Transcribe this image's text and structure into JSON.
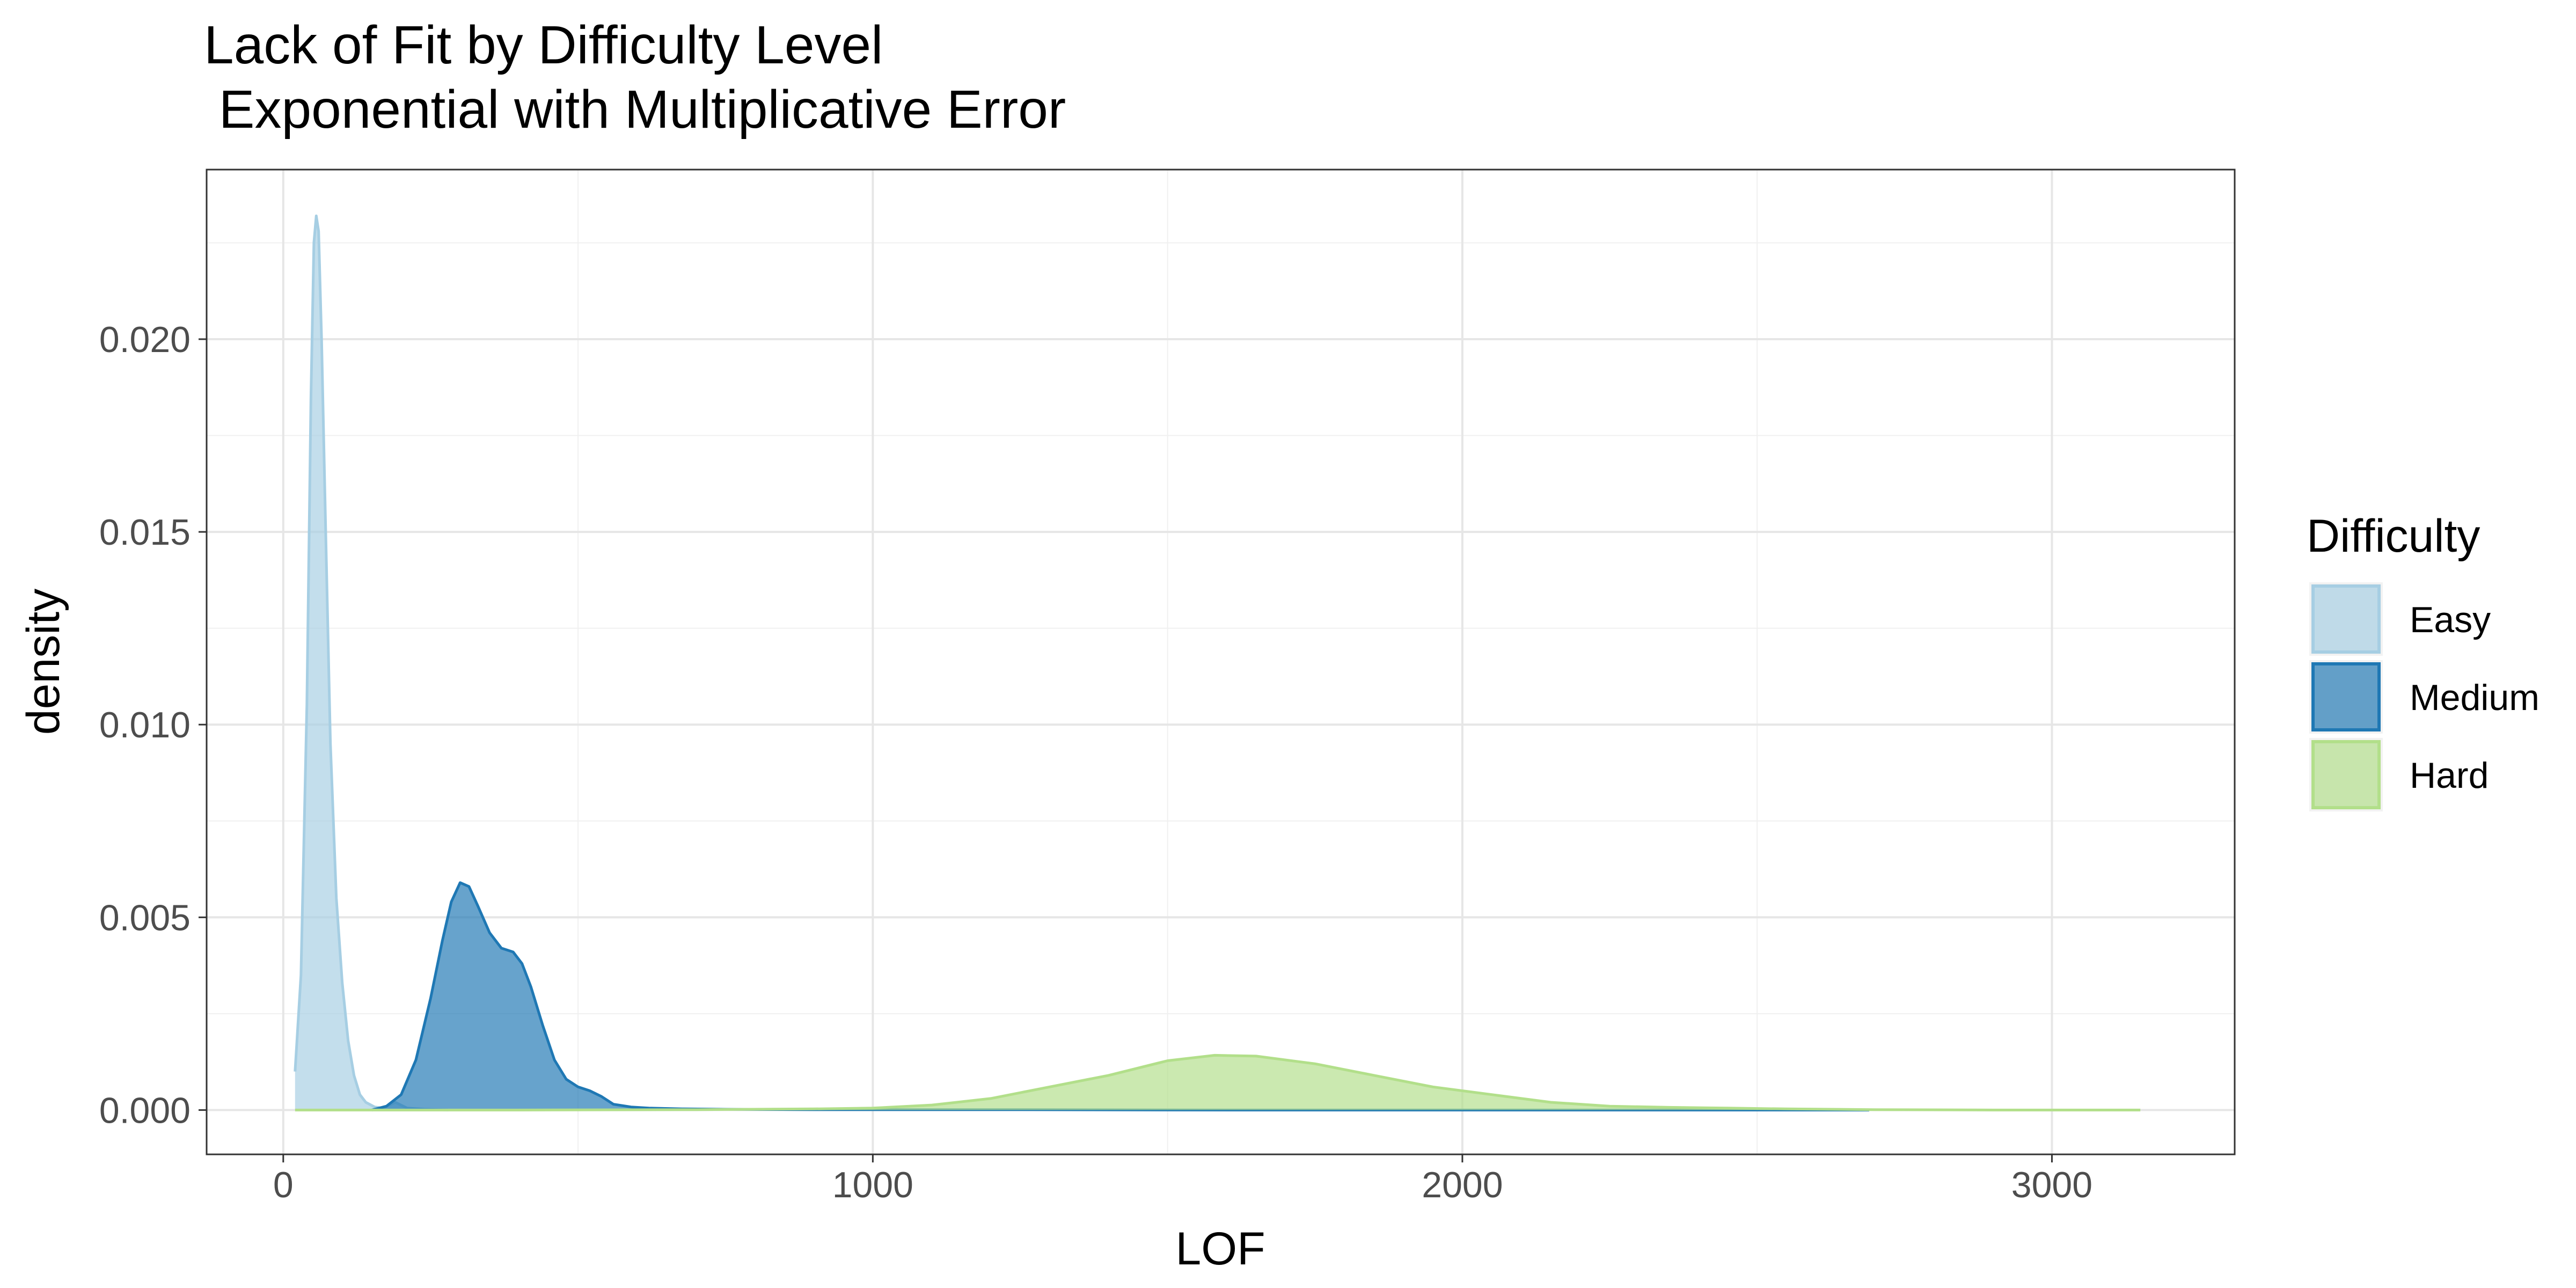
{
  "chart_data": {
    "type": "area",
    "title": "Lack of Fit by Difficulty Level",
    "subtitle": " Exponential with Multiplicative Error",
    "xlabel": "LOF",
    "ylabel": "density",
    "xlim": [
      -130,
      3310
    ],
    "ylim": [
      -0.00115,
      0.0244
    ],
    "x_ticks": [
      0,
      1000,
      2000,
      3000
    ],
    "x_tick_labels": [
      "0",
      "1000",
      "2000",
      "3000"
    ],
    "y_ticks": [
      0.0,
      0.005,
      0.01,
      0.015,
      0.02
    ],
    "y_tick_labels": [
      "0.000",
      "0.005",
      "0.010",
      "0.015",
      "0.020"
    ],
    "grid": true,
    "legend": {
      "title": "Difficulty",
      "position": "right"
    },
    "series": [
      {
        "name": "Easy",
        "fill": "#a6cee3",
        "stroke": "#a6cee3",
        "points": [
          [
            20,
            0.001
          ],
          [
            30,
            0.0035
          ],
          [
            40,
            0.0105
          ],
          [
            47,
            0.0185
          ],
          [
            52,
            0.0225
          ],
          [
            56,
            0.0232
          ],
          [
            60,
            0.0228
          ],
          [
            65,
            0.02
          ],
          [
            72,
            0.015
          ],
          [
            80,
            0.0095
          ],
          [
            90,
            0.0055
          ],
          [
            100,
            0.0033
          ],
          [
            110,
            0.0018
          ],
          [
            120,
            0.0009
          ],
          [
            130,
            0.0004
          ],
          [
            140,
            0.0002
          ],
          [
            155,
            8e-05
          ],
          [
            170,
            5e-05
          ],
          [
            190,
            0.0002
          ],
          [
            210,
            5e-05
          ],
          [
            240,
            2e-05
          ],
          [
            280,
            0.0
          ]
        ]
      },
      {
        "name": "Medium",
        "fill": "#1f78b4",
        "stroke": "#1f78b4",
        "points": [
          [
            150,
            0.0
          ],
          [
            175,
            0.0001
          ],
          [
            200,
            0.0004
          ],
          [
            225,
            0.0013
          ],
          [
            250,
            0.0029
          ],
          [
            270,
            0.0044
          ],
          [
            285,
            0.0054
          ],
          [
            300,
            0.0059
          ],
          [
            315,
            0.0058
          ],
          [
            330,
            0.0053
          ],
          [
            350,
            0.0046
          ],
          [
            370,
            0.0042
          ],
          [
            390,
            0.0041
          ],
          [
            405,
            0.0038
          ],
          [
            420,
            0.0032
          ],
          [
            440,
            0.0022
          ],
          [
            460,
            0.0013
          ],
          [
            480,
            0.0008
          ],
          [
            500,
            0.0006
          ],
          [
            520,
            0.0005
          ],
          [
            540,
            0.00035
          ],
          [
            560,
            0.00015
          ],
          [
            590,
            8e-05
          ],
          [
            620,
            5e-05
          ],
          [
            680,
            3e-05
          ],
          [
            750,
            2e-05
          ],
          [
            900,
            1e-05
          ],
          [
            1200,
            1e-05
          ],
          [
            1600,
            0.0
          ],
          [
            2000,
            0.0
          ],
          [
            2690,
            0.0
          ]
        ]
      },
      {
        "name": "Hard",
        "fill": "#b2df8a",
        "stroke": "#b2df8a",
        "points": [
          [
            20,
            0.0
          ],
          [
            400,
            0.0
          ],
          [
            700,
            1e-05
          ],
          [
            900,
            3e-05
          ],
          [
            1000,
            5e-05
          ],
          [
            1100,
            0.00013
          ],
          [
            1200,
            0.0003
          ],
          [
            1300,
            0.0006
          ],
          [
            1400,
            0.0009
          ],
          [
            1500,
            0.00128
          ],
          [
            1580,
            0.00142
          ],
          [
            1650,
            0.0014
          ],
          [
            1750,
            0.0012
          ],
          [
            1850,
            0.0009
          ],
          [
            1950,
            0.0006
          ],
          [
            2050,
            0.0004
          ],
          [
            2150,
            0.0002
          ],
          [
            2250,
            0.0001
          ],
          [
            2350,
            7e-05
          ],
          [
            2450,
            5e-05
          ],
          [
            2550,
            3e-05
          ],
          [
            2700,
            1e-05
          ],
          [
            2900,
            0.0
          ],
          [
            3150,
            0.0
          ]
        ]
      }
    ]
  }
}
